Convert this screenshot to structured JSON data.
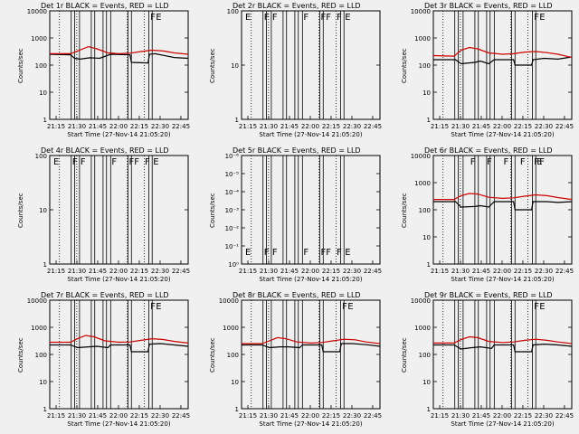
{
  "chart_data": [
    {
      "type": "line",
      "title": "Det 1r BLACK = Events, RED = LLD",
      "ylabel": "Counts/sec",
      "xlabel": "Start Time (27-Nov-14 21:05:20)",
      "x_ticks": [
        "21:15",
        "21:30",
        "21:45",
        "22:00",
        "22:15",
        "22:30",
        "22:45"
      ],
      "y_ticks": [
        "1",
        "10",
        "100",
        "1000",
        "10000"
      ],
      "x_range_min": [
        0,
        100
      ],
      "y_range_exp": [
        0,
        4
      ],
      "y_scale": "log",
      "flags": [
        "F",
        "E"
      ],
      "series": [
        {
          "color": "#000000",
          "points": [
            [
              0,
              2.4
            ],
            [
              15,
              2.38
            ],
            [
              18,
              2.25
            ],
            [
              22,
              2.22
            ],
            [
              29,
              2.27
            ],
            [
              33,
              2.26
            ],
            [
              36,
              2.25
            ],
            [
              44,
              2.4
            ],
            [
              58,
              2.38
            ],
            [
              59,
              2.1
            ],
            [
              71,
              2.08
            ],
            [
              72,
              2.4
            ],
            [
              76,
              2.42
            ],
            [
              82,
              2.36
            ],
            [
              90,
              2.28
            ],
            [
              100,
              2.25
            ]
          ]
        },
        {
          "color": "#cc0000",
          "points": [
            [
              0,
              2.42
            ],
            [
              15,
              2.42
            ],
            [
              20,
              2.52
            ],
            [
              28,
              2.68
            ],
            [
              34,
              2.6
            ],
            [
              42,
              2.45
            ],
            [
              50,
              2.42
            ],
            [
              58,
              2.44
            ],
            [
              66,
              2.5
            ],
            [
              74,
              2.55
            ],
            [
              82,
              2.52
            ],
            [
              90,
              2.45
            ],
            [
              100,
              2.4
            ]
          ]
        }
      ]
    },
    {
      "type": "line",
      "title": "Det 2r BLACK = Events, RED = LLD",
      "ylabel": "Counts/sec",
      "xlabel": "Start Time (27-Nov-14 21:05:20)",
      "x_ticks": [
        "21:15",
        "21:30",
        "21:45",
        "22:00",
        "22:15",
        "22:30",
        "22:45"
      ],
      "y_ticks": [
        "1",
        "10",
        "100"
      ],
      "x_range_min": [
        0,
        100
      ],
      "y_range_exp": [
        0,
        2
      ],
      "y_scale": "log",
      "flags": [
        "E",
        "F",
        "F",
        "F",
        "FF",
        "F",
        "E"
      ],
      "series": []
    },
    {
      "type": "line",
      "title": "Det 3r BLACK = Events, RED = LLD",
      "ylabel": "Counts/sec",
      "xlabel": "Start Time (27-Nov-14 21:05:20)",
      "x_ticks": [
        "21:15",
        "21:30",
        "21:45",
        "22:00",
        "22:15",
        "22:30",
        "22:45"
      ],
      "y_ticks": [
        "1",
        "10",
        "100",
        "1000",
        "10000"
      ],
      "x_range_min": [
        0,
        100
      ],
      "y_range_exp": [
        0,
        4
      ],
      "y_scale": "log",
      "flags": [
        "F",
        "E"
      ],
      "series": [
        {
          "color": "#000000",
          "points": [
            [
              0,
              2.2
            ],
            [
              16,
              2.2
            ],
            [
              20,
              2.05
            ],
            [
              30,
              2.1
            ],
            [
              34,
              2.15
            ],
            [
              40,
              2.05
            ],
            [
              44,
              2.2
            ],
            [
              58,
              2.2
            ],
            [
              59,
              2.0
            ],
            [
              71,
              2.0
            ],
            [
              72,
              2.2
            ],
            [
              80,
              2.25
            ],
            [
              90,
              2.22
            ],
            [
              100,
              2.3
            ]
          ]
        },
        {
          "color": "#cc0000",
          "points": [
            [
              0,
              2.35
            ],
            [
              15,
              2.33
            ],
            [
              20,
              2.55
            ],
            [
              26,
              2.65
            ],
            [
              32,
              2.6
            ],
            [
              40,
              2.45
            ],
            [
              50,
              2.4
            ],
            [
              58,
              2.42
            ],
            [
              66,
              2.48
            ],
            [
              74,
              2.5
            ],
            [
              82,
              2.46
            ],
            [
              90,
              2.4
            ],
            [
              100,
              2.28
            ]
          ]
        }
      ]
    },
    {
      "type": "line",
      "title": "Det 4r BLACK = Events, RED = LLD",
      "ylabel": "Counts/sec",
      "xlabel": "Start Time (27-Nov-14 21:05:20)",
      "x_ticks": [
        "21:15",
        "21:30",
        "21:45",
        "22:00",
        "22:15",
        "22:30",
        "22:45"
      ],
      "y_ticks": [
        "1",
        "10",
        "100"
      ],
      "x_range_min": [
        0,
        100
      ],
      "y_range_exp": [
        0,
        2
      ],
      "y_scale": "log",
      "flags": [
        "E",
        "F",
        "F",
        "F",
        "FF",
        "F",
        "E"
      ],
      "series": []
    },
    {
      "type": "line",
      "title": "Det 5r BLACK = Events, RED = LLD",
      "ylabel": "Counts/sec",
      "xlabel": "Start Time (27-Nov-14 21:05:20)",
      "x_ticks": [
        "21:15",
        "21:30",
        "21:45",
        "22:00",
        "22:15",
        "22:30",
        "22:45"
      ],
      "y_ticks": [
        "10⁰",
        "10⁻¹",
        "10⁻²",
        "10⁻³",
        "10⁻⁴",
        "10⁻⁵",
        "10⁻⁶"
      ],
      "x_range_min": [
        0,
        100
      ],
      "y_range_exp": [
        0,
        -6
      ],
      "y_scale": "log",
      "flags": [
        "E",
        "F",
        "F",
        "F",
        "FF",
        "F",
        "E"
      ],
      "series": []
    },
    {
      "type": "line",
      "title": "Det 6r BLACK = Events, RED = LLD",
      "ylabel": "Counts/sec",
      "xlabel": "Start Time (27-Nov-14 21:05:20)",
      "x_ticks": [
        "21:15",
        "21:30",
        "21:45",
        "22:00",
        "22:15",
        "22:30",
        "22:45"
      ],
      "y_ticks": [
        "1",
        "10",
        "100",
        "1000",
        "10000"
      ],
      "x_range_min": [
        0,
        100
      ],
      "y_range_exp": [
        0,
        4
      ],
      "y_scale": "log",
      "flags": [
        "F",
        "F",
        "F",
        "F",
        "F",
        "F",
        "E"
      ],
      "series": [
        {
          "color": "#000000",
          "points": [
            [
              0,
              2.3
            ],
            [
              16,
              2.3
            ],
            [
              20,
              2.1
            ],
            [
              30,
              2.12
            ],
            [
              34,
              2.15
            ],
            [
              40,
              2.1
            ],
            [
              44,
              2.3
            ],
            [
              58,
              2.3
            ],
            [
              59,
              2.0
            ],
            [
              71,
              2.0
            ],
            [
              72,
              2.3
            ],
            [
              82,
              2.3
            ],
            [
              90,
              2.27
            ],
            [
              100,
              2.3
            ]
          ]
        },
        {
          "color": "#cc0000",
          "points": [
            [
              0,
              2.38
            ],
            [
              15,
              2.38
            ],
            [
              20,
              2.52
            ],
            [
              26,
              2.6
            ],
            [
              32,
              2.58
            ],
            [
              40,
              2.46
            ],
            [
              50,
              2.42
            ],
            [
              58,
              2.44
            ],
            [
              66,
              2.5
            ],
            [
              74,
              2.55
            ],
            [
              82,
              2.52
            ],
            [
              90,
              2.45
            ],
            [
              100,
              2.38
            ]
          ]
        }
      ]
    },
    {
      "type": "line",
      "title": "Det 7r BLACK = Events, RED = LLD",
      "ylabel": "Counts/sec",
      "xlabel": "Start Time (27-Nov-14 21:05:20)",
      "x_ticks": [
        "21:15",
        "21:30",
        "21:45",
        "22:00",
        "22:15",
        "22:30",
        "22:45"
      ],
      "y_ticks": [
        "1",
        "10",
        "100",
        "1000",
        "10000"
      ],
      "x_range_min": [
        0,
        100
      ],
      "y_range_exp": [
        0,
        4
      ],
      "y_scale": "log",
      "flags": [
        "F",
        "E"
      ],
      "series": [
        {
          "color": "#000000",
          "points": [
            [
              0,
              2.35
            ],
            [
              15,
              2.35
            ],
            [
              20,
              2.25
            ],
            [
              28,
              2.28
            ],
            [
              34,
              2.3
            ],
            [
              42,
              2.25
            ],
            [
              44,
              2.35
            ],
            [
              58,
              2.35
            ],
            [
              59,
              2.1
            ],
            [
              71,
              2.1
            ],
            [
              72,
              2.38
            ],
            [
              80,
              2.4
            ],
            [
              90,
              2.35
            ],
            [
              100,
              2.3
            ]
          ]
        },
        {
          "color": "#cc0000",
          "points": [
            [
              0,
              2.45
            ],
            [
              15,
              2.45
            ],
            [
              20,
              2.58
            ],
            [
              26,
              2.7
            ],
            [
              32,
              2.65
            ],
            [
              40,
              2.5
            ],
            [
              50,
              2.45
            ],
            [
              58,
              2.46
            ],
            [
              66,
              2.52
            ],
            [
              74,
              2.58
            ],
            [
              82,
              2.55
            ],
            [
              90,
              2.48
            ],
            [
              100,
              2.42
            ]
          ]
        }
      ]
    },
    {
      "type": "line",
      "title": "Det 8r BLACK = Events, RED = LLD",
      "ylabel": "Counts/sec",
      "xlabel": "Start Time (27-Nov-14 21:05:20)",
      "x_ticks": [
        "21:15",
        "21:30",
        "21:45",
        "22:00",
        "22:15",
        "22:30",
        "22:45"
      ],
      "y_ticks": [
        "1",
        "10",
        "100",
        "1000",
        "10000"
      ],
      "x_range_min": [
        0,
        100
      ],
      "y_range_exp": [
        0,
        4
      ],
      "y_scale": "log",
      "flags": [
        "F",
        "E"
      ],
      "series": [
        {
          "color": "#000000",
          "points": [
            [
              0,
              2.35
            ],
            [
              15,
              2.35
            ],
            [
              20,
              2.25
            ],
            [
              28,
              2.28
            ],
            [
              34,
              2.28
            ],
            [
              42,
              2.25
            ],
            [
              44,
              2.35
            ],
            [
              58,
              2.35
            ],
            [
              59,
              2.1
            ],
            [
              71,
              2.1
            ],
            [
              72,
              2.4
            ],
            [
              80,
              2.4
            ],
            [
              90,
              2.36
            ],
            [
              100,
              2.3
            ]
          ]
        },
        {
          "color": "#cc0000",
          "points": [
            [
              0,
              2.4
            ],
            [
              15,
              2.4
            ],
            [
              20,
              2.5
            ],
            [
              26,
              2.62
            ],
            [
              32,
              2.58
            ],
            [
              40,
              2.46
            ],
            [
              50,
              2.42
            ],
            [
              58,
              2.44
            ],
            [
              66,
              2.5
            ],
            [
              74,
              2.56
            ],
            [
              82,
              2.54
            ],
            [
              90,
              2.46
            ],
            [
              100,
              2.4
            ]
          ]
        }
      ]
    },
    {
      "type": "line",
      "title": "Det 9r BLACK = Events, RED = LLD",
      "ylabel": "Counts/sec",
      "xlabel": "Start Time (27-Nov-14 21:05:20)",
      "x_ticks": [
        "21:15",
        "21:30",
        "21:45",
        "22:00",
        "22:15",
        "22:30",
        "22:45"
      ],
      "y_ticks": [
        "1",
        "10",
        "100",
        "1000",
        "10000"
      ],
      "x_range_min": [
        0,
        100
      ],
      "y_range_exp": [
        0,
        4
      ],
      "y_scale": "log",
      "flags": [
        "F",
        "E"
      ],
      "series": [
        {
          "color": "#000000",
          "points": [
            [
              0,
              2.35
            ],
            [
              15,
              2.35
            ],
            [
              20,
              2.2
            ],
            [
              28,
              2.25
            ],
            [
              34,
              2.28
            ],
            [
              42,
              2.22
            ],
            [
              44,
              2.35
            ],
            [
              58,
              2.35
            ],
            [
              59,
              2.1
            ],
            [
              71,
              2.1
            ],
            [
              72,
              2.35
            ],
            [
              80,
              2.38
            ],
            [
              90,
              2.35
            ],
            [
              100,
              2.3
            ]
          ]
        },
        {
          "color": "#cc0000",
          "points": [
            [
              0,
              2.42
            ],
            [
              15,
              2.42
            ],
            [
              20,
              2.55
            ],
            [
              26,
              2.65
            ],
            [
              32,
              2.62
            ],
            [
              40,
              2.48
            ],
            [
              50,
              2.44
            ],
            [
              58,
              2.46
            ],
            [
              66,
              2.52
            ],
            [
              74,
              2.56
            ],
            [
              82,
              2.52
            ],
            [
              90,
              2.46
            ],
            [
              100,
              2.4
            ]
          ]
        }
      ]
    }
  ]
}
